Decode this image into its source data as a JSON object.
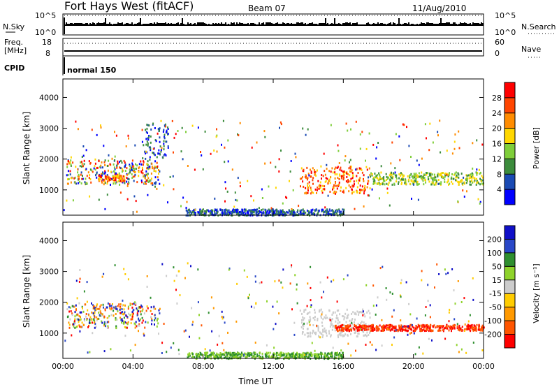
{
  "header": {
    "station": "Fort Hays West (fitACF)",
    "beam": "Beam 07",
    "date": "11/Aug/2010"
  },
  "params": {
    "nsky_label": "N.Sky",
    "nsky_ticks": [
      "10^5",
      "10^0"
    ],
    "nsearch_label": "N.Search",
    "nsearch_ticks": [
      "10^5",
      "10^0"
    ],
    "freq_label_top": "Freq.",
    "freq_label_unit": "[MHz]",
    "freq_ticks": [
      "18",
      "8"
    ],
    "nave_label": "Nave",
    "nave_ticks": [
      "60",
      "0"
    ],
    "cpid_label": "CPID",
    "cpid_value": "normal 150"
  },
  "colors": {
    "power_scale": [
      "#0000ff",
      "#1a4ab4",
      "#3c8c3c",
      "#7fce3a",
      "#ffd700",
      "#ff8c00",
      "#ff4500",
      "#ff0000"
    ],
    "velocity_scale": [
      "#1010c8",
      "#2a48c8",
      "#2f8f2f",
      "#8fd32b",
      "#cccccc",
      "#ffcc00",
      "#ff9900",
      "#ff5500",
      "#ff0000"
    ]
  },
  "chart_data": [
    {
      "type": "heatmap",
      "title": "Power",
      "xlabel": "",
      "ylabel": "Slant Range [km]",
      "x_ticks": [
        "00:00",
        "04:00",
        "08:00",
        "12:00",
        "16:00",
        "20:00",
        "00:00"
      ],
      "x_range_hours": [
        0,
        24
      ],
      "y_ticks": [
        1000,
        2000,
        3000,
        4000
      ],
      "ylim": [
        180,
        4600
      ],
      "colorbar": {
        "label": "Power [dB]",
        "ticks": [
          4,
          8,
          12,
          16,
          20,
          24,
          28
        ],
        "range": [
          0,
          32
        ]
      },
      "scatter_regions": [
        {
          "t": [
            0.2,
            5.5
          ],
          "r": [
            1200,
            2000
          ],
          "level": "mixed"
        },
        {
          "t": [
            2.0,
            3.5
          ],
          "r": [
            1300,
            1500
          ],
          "level": "high"
        },
        {
          "t": [
            4.5,
            6.0
          ],
          "r": [
            2000,
            3200
          ],
          "level": "low"
        },
        {
          "t": [
            13.5,
            17.5
          ],
          "r": [
            900,
            1800
          ],
          "level": "high"
        },
        {
          "t": [
            17.5,
            24.0
          ],
          "r": [
            1200,
            1600
          ],
          "level": "mid"
        },
        {
          "t": [
            7.0,
            16.0
          ],
          "r": [
            200,
            400
          ],
          "level": "low"
        }
      ]
    },
    {
      "type": "heatmap",
      "title": "Velocity",
      "xlabel": "Time UT",
      "ylabel": "Slant Range [km]",
      "x_ticks": [
        "00:00",
        "04:00",
        "08:00",
        "12:00",
        "16:00",
        "20:00",
        "00:00"
      ],
      "x_range_hours": [
        0,
        24
      ],
      "y_ticks": [
        1000,
        2000,
        3000,
        4000
      ],
      "ylim": [
        180,
        4600
      ],
      "colorbar": {
        "label": "Velocity [m s⁻¹]",
        "ticks": [
          200,
          100,
          50,
          15,
          -15,
          -50,
          -100,
          -200
        ],
        "range": [
          -250,
          250
        ]
      },
      "scatter_regions": [
        {
          "t": [
            0.2,
            5.5
          ],
          "r": [
            1200,
            2000
          ],
          "level": "mixed"
        },
        {
          "t": [
            13.5,
            17.5
          ],
          "r": [
            900,
            1800
          ],
          "level": "gray"
        },
        {
          "t": [
            15.5,
            24.0
          ],
          "r": [
            1100,
            1300
          ],
          "level": "red"
        },
        {
          "t": [
            7.0,
            16.0
          ],
          "r": [
            200,
            400
          ],
          "level": "green"
        }
      ]
    }
  ]
}
